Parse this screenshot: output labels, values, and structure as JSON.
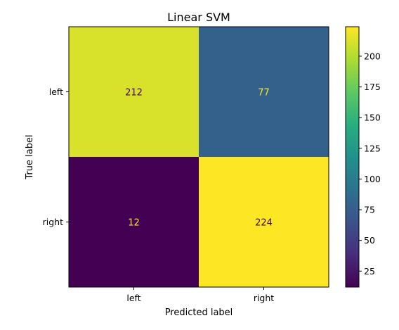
{
  "chart_data": {
    "type": "heatmap",
    "title": "Linear SVM",
    "xlabel": "Predicted label",
    "ylabel": "True label",
    "x_categories": [
      "left",
      "right"
    ],
    "y_categories": [
      "left",
      "right"
    ],
    "values": [
      [
        212,
        77
      ],
      [
        12,
        224
      ]
    ],
    "colormap": "viridis",
    "colorbar": {
      "min": 12,
      "max": 224,
      "ticks": [
        25,
        50,
        75,
        100,
        125,
        150,
        175,
        200
      ]
    },
    "colors": {
      "low": "#440154",
      "high": "#fde725",
      "text_on_dark": "#fde725",
      "text_on_light": "#440154"
    }
  }
}
